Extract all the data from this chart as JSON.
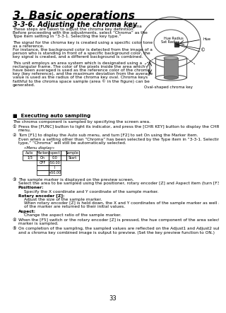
{
  "page_num": "33",
  "chapter_title": "3. Basic operations",
  "section_title": "3-3-6. Adjusting the chroma key",
  "bg_color": "#ffffff",
  "para1_lines": [
    "These steps are taken to adjust the chroma key definition.",
    "Before proceeding with the adjustments, select “Chroma” as the",
    "Type item setting in “3-3-1. Selecting the key type.”"
  ],
  "para2_lines": [
    "The signal for the chroma key is created using a specific color tone",
    "as a reference.",
    "For instance, the background color is detected from the image of a",
    "person who is standing in front of a specific background color, the",
    "key signal is created, and a different background is combined."
  ],
  "para3_lines": [
    "This unit employs an area system which is designated using a",
    "rectangular frame. The color of the pixels inside the area which",
    "have been averaged is used as the reference color of the chroma",
    "key (key reference), and the maximum deviation from the average",
    "value is used as the radius of the chroma key oval. Chroma keys",
    "faithful to the chroma space sample (area © in the figure) can be",
    "generated."
  ],
  "diagram_caption": "Oval-shaped chroma key",
  "exec_heading": "■  Executing auto sampling",
  "exec_body": "The chroma component is sampled by specifying the screen area.",
  "step1_lines": [
    "Press the [FUNC] button to light its indicator, and press the [CHR KEY] button to display the CHR KEY",
    "menu."
  ],
  "step2_lines": [
    "Turn [F1] to display the Auto sub menu, and turn [F2] to set On using the Marker item.",
    "Even when a setting other than “Chroma” has been selected by the Type item in “3-3-1. Selecting the key",
    "type,” “Chroma” will still be automatically selected."
  ],
  "menu_label": "«Menu display»",
  "step3_head": "The sample marker is displayed on the preview screen.",
  "step3_body": "Select the area to be sampled using the positioner, rotary encoder [Z] and Aspect item (turn [F3] to adjust).",
  "positioner_head": "Positioner:",
  "positioner_body": "Specify the X coordinate and Y coordinate of the sample marker.",
  "rotary_head": "Rotary encoder [Z]:",
  "rotary_body1": "Adjust the size of the sample marker.",
  "rotary_body2_lines": [
    "When rotary encoder [Z] is held down, the X and Y coordinates of the sample marker as well as the size",
    "of the marker are returned to their initial values."
  ],
  "aspect_head": "Aspect:",
  "aspect_body": "Change the aspect ratio of the sample marker.",
  "step4_lines": [
    "When the [F5] switch or the rotary encoder [Z] is pressed, the hue component of the area selected by the",
    "marker is sampled."
  ],
  "step5_lines": [
    "On completion of the sampling, the sampled values are reflected on the Adjust1 and Adjust2 sub menus,",
    "and a chroma key combined image is output to preview. (Set the key preview function to ON.)"
  ]
}
